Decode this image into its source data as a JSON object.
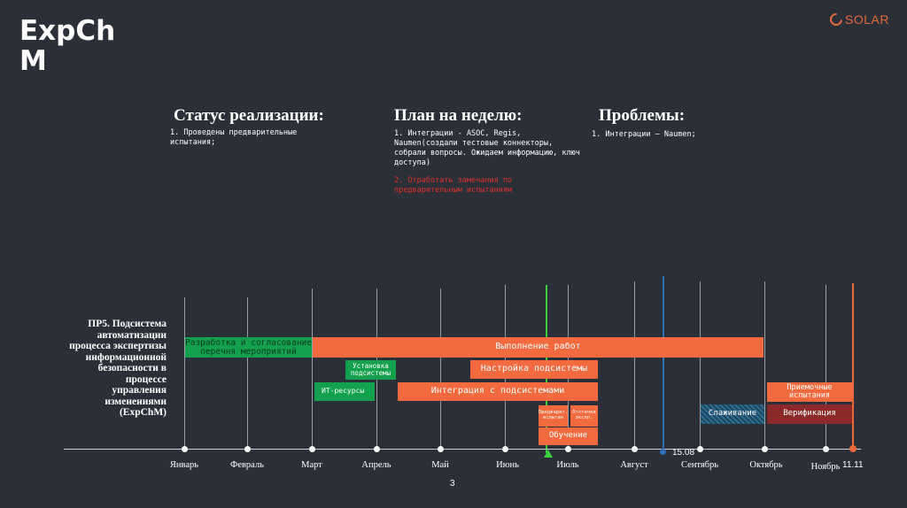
{
  "header": {
    "title": "ExpChM",
    "logo_text": "SOLAR"
  },
  "status": {
    "heading": "Статус реализации:",
    "item1": "1. Проведены предварительные испытания;"
  },
  "plan": {
    "heading": "План на неделю:",
    "item1": "1. Интеграции - ASOC, Regis, Naumen(создали тестовые коннекторы, собрали вопросы. Ожидаем информацию, ключ доступа)",
    "item2": "2. Отработать замечания по предварительным испытаниям"
  },
  "problems": {
    "heading": "Проблемы:",
    "item1": "1. Интеграции – Naumen;"
  },
  "project_label": "ПР5. Подсистема автоматизации процесса экспертизы информационной безопасности в процессе управления изменениями (ExpChM)",
  "months": [
    "Январь",
    "Февраль",
    "Март",
    "Апрель",
    "Май",
    "Июнь",
    "Июль",
    "Август",
    "Сентябрь",
    "Октябрь",
    "Ноябрь"
  ],
  "bars": {
    "razrabotka": "Разработка и согласование перечня мероприятий",
    "vypolnenie": "Выполнение работ",
    "ustanovka": "Установка подсистемы",
    "nastroyka": "Настройка подсистемы",
    "it_resursy": "ИТ-ресурсы",
    "integraciya": "Интеграция с подсистемами",
    "predvar": "Предварит. испытан",
    "otladka": "Отстачка экспл.",
    "obuchenie": "Обучение",
    "slazhivanie": "Слаживание",
    "priemochnye": "Приемочные испытания",
    "verifikaciya": "Верификация"
  },
  "markers": {
    "blue_date": "15.08",
    "orange_date": "11.11"
  },
  "colors": {
    "orange": "#f26a3d",
    "green": "#13a14e",
    "blue": "#2e6fb6",
    "dark_red": "#8b2a2a",
    "bg": "#2b3038"
  },
  "page_number": "3"
}
